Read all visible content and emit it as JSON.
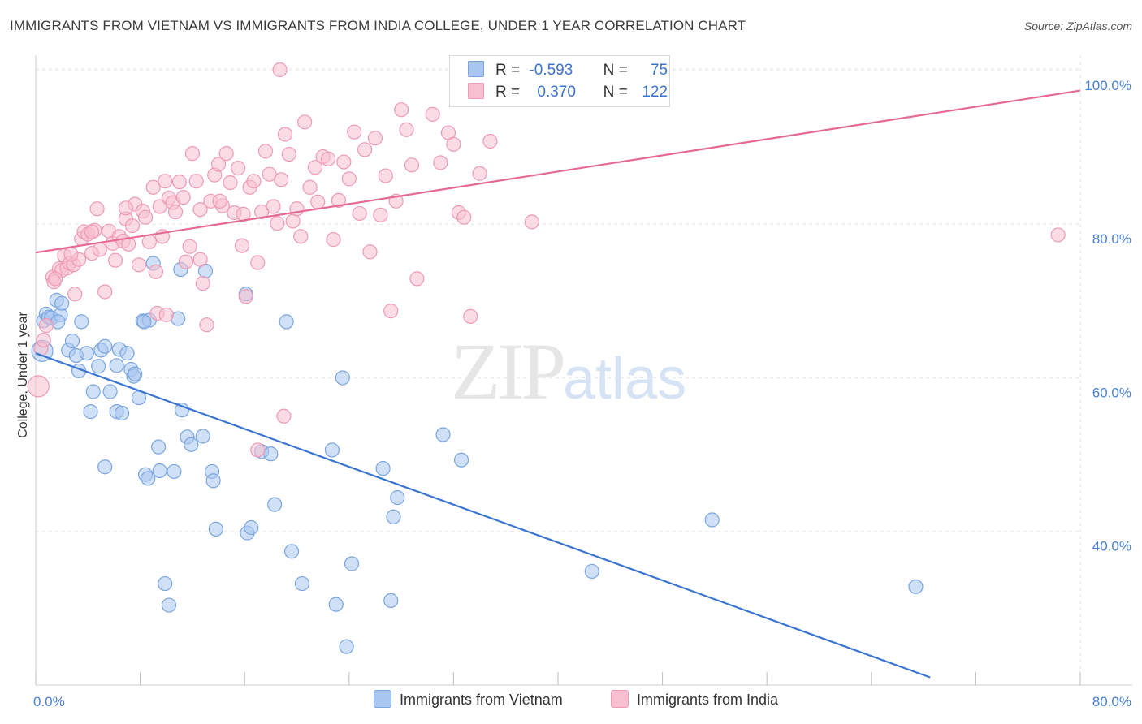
{
  "title": "IMMIGRANTS FROM VIETNAM VS IMMIGRANTS FROM INDIA COLLEGE, UNDER 1 YEAR CORRELATION CHART",
  "source": "Source: ZipAtlas.com",
  "watermark": {
    "zip": "ZIP",
    "atlas": "atlas"
  },
  "colors": {
    "vietnam_fill": "#a9c6ef",
    "vietnam_stroke": "#7aa5e0",
    "vietnam_line": "#3a76d0",
    "india_fill": "#f7bfd0",
    "india_stroke": "#ee9ab5",
    "india_line": "#e46a94",
    "grid": "#e6e6e6",
    "tick_label": "#4a7fd0"
  },
  "legend": {
    "vietnam": {
      "r_label": "R =",
      "r_value": "-0.593",
      "n_label": "N =",
      "n_value": "75"
    },
    "india": {
      "r_label": "R =",
      "r_value": "0.370",
      "n_label": "N =",
      "n_value": "122"
    }
  },
  "chart_data": {
    "type": "scatter",
    "title": "IMMIGRANTS FROM VIETNAM VS IMMIGRANTS FROM INDIA COLLEGE, UNDER 1 YEAR CORRELATION CHART",
    "xlabel": "",
    "ylabel": "College, Under 1 year",
    "xlim": [
      0,
      80
    ],
    "ylim": [
      20,
      102
    ],
    "x_tick_labels": [
      "0.0%",
      "80.0%"
    ],
    "y_ticks": [
      40,
      60,
      80,
      100
    ],
    "y_tick_labels": [
      "40.0%",
      "60.0%",
      "80.0%",
      "100.0%"
    ],
    "grid": true,
    "legend_position": "top-center",
    "series": [
      {
        "name": "Immigrants from Vietnam",
        "r": -0.593,
        "n": 75,
        "trend": {
          "x0": 0,
          "y0": 63.2,
          "x1": 68.5,
          "y1": 21.0
        },
        "points": [
          [
            0.5,
            63.5
          ],
          [
            0.6,
            67.4
          ],
          [
            0.8,
            68.3
          ],
          [
            1.0,
            67.9
          ],
          [
            1.2,
            67.8
          ],
          [
            1.6,
            70.1
          ],
          [
            1.9,
            68.2
          ],
          [
            2.0,
            69.7
          ],
          [
            1.7,
            67.3
          ],
          [
            2.5,
            63.6
          ],
          [
            2.8,
            64.8
          ],
          [
            3.1,
            62.9
          ],
          [
            3.3,
            60.9
          ],
          [
            3.5,
            67.3
          ],
          [
            3.9,
            63.2
          ],
          [
            4.2,
            55.6
          ],
          [
            4.4,
            58.2
          ],
          [
            4.8,
            61.5
          ],
          [
            5.0,
            63.6
          ],
          [
            5.3,
            64.1
          ],
          [
            5.3,
            48.4
          ],
          [
            5.7,
            58.2
          ],
          [
            6.2,
            55.6
          ],
          [
            6.2,
            61.6
          ],
          [
            6.6,
            55.4
          ],
          [
            6.4,
            63.7
          ],
          [
            7.0,
            63.2
          ],
          [
            7.3,
            61.1
          ],
          [
            7.5,
            60.2
          ],
          [
            7.6,
            60.5
          ],
          [
            7.9,
            57.4
          ],
          [
            8.2,
            67.4
          ],
          [
            8.4,
            47.4
          ],
          [
            8.6,
            46.9
          ],
          [
            9.0,
            74.9
          ],
          [
            9.4,
            51.0
          ],
          [
            9.5,
            47.9
          ],
          [
            10.2,
            30.4
          ],
          [
            10.6,
            47.8
          ],
          [
            10.9,
            67.7
          ],
          [
            11.1,
            74.1
          ],
          [
            11.2,
            55.8
          ],
          [
            11.6,
            52.3
          ],
          [
            11.9,
            51.3
          ],
          [
            12.8,
            52.4
          ],
          [
            13.0,
            73.9
          ],
          [
            13.5,
            47.8
          ],
          [
            13.6,
            46.6
          ],
          [
            13.8,
            40.3
          ],
          [
            16.1,
            70.9
          ],
          [
            16.2,
            39.8
          ],
          [
            16.5,
            40.5
          ],
          [
            17.3,
            50.4
          ],
          [
            18.0,
            50.1
          ],
          [
            18.3,
            43.5
          ],
          [
            19.2,
            67.3
          ],
          [
            19.6,
            37.4
          ],
          [
            20.4,
            33.2
          ],
          [
            22.7,
            50.6
          ],
          [
            23.0,
            30.5
          ],
          [
            23.5,
            60.0
          ],
          [
            23.8,
            25.0
          ],
          [
            24.2,
            35.8
          ],
          [
            26.6,
            48.2
          ],
          [
            27.2,
            31.0
          ],
          [
            27.4,
            41.9
          ],
          [
            27.7,
            44.4
          ],
          [
            31.2,
            52.6
          ],
          [
            32.6,
            49.3
          ],
          [
            42.6,
            34.8
          ],
          [
            51.8,
            41.5
          ],
          [
            67.4,
            32.8
          ],
          [
            9.9,
            33.2
          ],
          [
            8.7,
            67.5
          ],
          [
            8.3,
            67.3
          ]
        ]
      },
      {
        "name": "Immigrants from India",
        "r": 0.37,
        "n": 122,
        "trend": {
          "x0": 0,
          "y0": 76.3,
          "x1": 80,
          "y1": 97.4
        },
        "points": [
          [
            0.2,
            58.9
          ],
          [
            0.4,
            63.8
          ],
          [
            0.6,
            64.9
          ],
          [
            0.8,
            66.8
          ],
          [
            1.3,
            73.1
          ],
          [
            1.4,
            72.5
          ],
          [
            1.8,
            74.2
          ],
          [
            2.0,
            74.0
          ],
          [
            2.2,
            75.9
          ],
          [
            2.4,
            74.3
          ],
          [
            2.6,
            74.9
          ],
          [
            2.9,
            74.7
          ],
          [
            3.3,
            75.4
          ],
          [
            3.5,
            78.1
          ],
          [
            3.7,
            79.0
          ],
          [
            4.0,
            78.7
          ],
          [
            4.3,
            76.2
          ],
          [
            4.5,
            79.2
          ],
          [
            4.7,
            82.0
          ],
          [
            4.9,
            76.7
          ],
          [
            5.3,
            71.2
          ],
          [
            5.6,
            79.1
          ],
          [
            5.9,
            77.5
          ],
          [
            6.1,
            75.3
          ],
          [
            6.4,
            78.4
          ],
          [
            6.7,
            77.8
          ],
          [
            6.9,
            80.7
          ],
          [
            7.1,
            77.4
          ],
          [
            7.4,
            79.8
          ],
          [
            7.6,
            82.6
          ],
          [
            7.9,
            74.7
          ],
          [
            8.2,
            81.7
          ],
          [
            8.4,
            80.9
          ],
          [
            8.7,
            77.7
          ],
          [
            9.0,
            84.8
          ],
          [
            9.2,
            73.8
          ],
          [
            9.5,
            82.3
          ],
          [
            9.7,
            78.4
          ],
          [
            9.9,
            85.6
          ],
          [
            10.2,
            83.4
          ],
          [
            10.5,
            82.8
          ],
          [
            10.7,
            81.6
          ],
          [
            11.0,
            85.5
          ],
          [
            11.3,
            83.5
          ],
          [
            11.5,
            75.1
          ],
          [
            11.8,
            77.1
          ],
          [
            12.0,
            89.2
          ],
          [
            12.3,
            85.6
          ],
          [
            12.6,
            75.4
          ],
          [
            12.8,
            72.3
          ],
          [
            13.1,
            66.9
          ],
          [
            13.4,
            83.0
          ],
          [
            13.7,
            86.4
          ],
          [
            14.0,
            87.8
          ],
          [
            14.3,
            82.4
          ],
          [
            14.6,
            89.2
          ],
          [
            14.9,
            85.4
          ],
          [
            15.2,
            81.5
          ],
          [
            15.5,
            87.3
          ],
          [
            15.8,
            77.2
          ],
          [
            16.1,
            70.6
          ],
          [
            16.4,
            84.8
          ],
          [
            16.7,
            85.6
          ],
          [
            17.0,
            75.0
          ],
          [
            17.3,
            81.6
          ],
          [
            17.6,
            89.5
          ],
          [
            17.9,
            86.5
          ],
          [
            18.2,
            82.3
          ],
          [
            18.5,
            80.1
          ],
          [
            18.8,
            85.8
          ],
          [
            19.1,
            91.7
          ],
          [
            19.4,
            89.1
          ],
          [
            19.7,
            80.4
          ],
          [
            20.0,
            82.0
          ],
          [
            20.3,
            78.4
          ],
          [
            20.6,
            93.3
          ],
          [
            21.0,
            84.8
          ],
          [
            21.4,
            87.4
          ],
          [
            22.0,
            88.8
          ],
          [
            22.4,
            88.5
          ],
          [
            22.8,
            78.0
          ],
          [
            23.2,
            83.1
          ],
          [
            23.6,
            88.1
          ],
          [
            24.0,
            85.9
          ],
          [
            24.4,
            92.0
          ],
          [
            24.8,
            81.4
          ],
          [
            25.2,
            89.7
          ],
          [
            25.6,
            76.4
          ],
          [
            26.0,
            91.2
          ],
          [
            26.4,
            81.2
          ],
          [
            26.8,
            86.3
          ],
          [
            27.2,
            68.7
          ],
          [
            27.6,
            83.0
          ],
          [
            28.0,
            94.9
          ],
          [
            28.4,
            92.3
          ],
          [
            28.8,
            87.7
          ],
          [
            29.2,
            72.9
          ],
          [
            30.4,
            94.3
          ],
          [
            31.0,
            88.0
          ],
          [
            31.6,
            91.9
          ],
          [
            32.0,
            90.4
          ],
          [
            32.4,
            81.5
          ],
          [
            32.8,
            80.9
          ],
          [
            33.3,
            68.0
          ],
          [
            34.0,
            86.6
          ],
          [
            34.8,
            90.8
          ],
          [
            38.0,
            80.3
          ],
          [
            78.3,
            78.6
          ],
          [
            18.7,
            100.1
          ],
          [
            19.0,
            55.0
          ],
          [
            17.0,
            50.6
          ],
          [
            9.3,
            68.4
          ],
          [
            10.0,
            68.2
          ],
          [
            6.9,
            82.1
          ],
          [
            4.3,
            79.0
          ],
          [
            2.7,
            76.1
          ],
          [
            3.0,
            70.9
          ],
          [
            1.5,
            72.9
          ],
          [
            14.1,
            83.0
          ],
          [
            15.9,
            81.3
          ],
          [
            12.6,
            81.9
          ],
          [
            21.6,
            82.9
          ]
        ]
      }
    ]
  }
}
